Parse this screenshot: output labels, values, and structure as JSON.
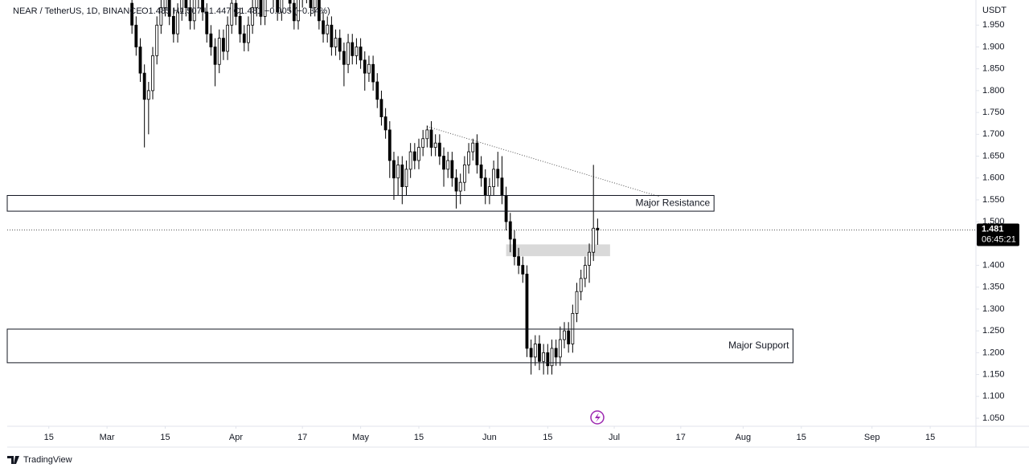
{
  "chart_data": {
    "type": "candlestick",
    "title": "NEAR / TetherUS, 1D, BINANCE",
    "ohlc_text": "O1.485 H1.507 L1.447 C1.481 −0.005 (−0.34%)",
    "y_axis_label": "USDT",
    "footer": "TradingView",
    "up_color": "#ffffff",
    "down_color": "#000000",
    "grid": false,
    "xlim": [
      "02-05",
      "09-26"
    ],
    "ylim": [
      1.0316,
      2.0075
    ],
    "xticks": [
      {
        "value": "02-15",
        "label": "15"
      },
      {
        "value": "03-01",
        "label": "Mar"
      },
      {
        "value": "03-15",
        "label": "15"
      },
      {
        "value": "04-01",
        "label": "Apr"
      },
      {
        "value": "04-17",
        "label": "17"
      },
      {
        "value": "05-01",
        "label": "May"
      },
      {
        "value": "05-15",
        "label": "15"
      },
      {
        "value": "06-01",
        "label": "Jun"
      },
      {
        "value": "06-15",
        "label": "15"
      },
      {
        "value": "07-01",
        "label": "Jul"
      },
      {
        "value": "07-17",
        "label": "17"
      },
      {
        "value": "08-01",
        "label": "Aug"
      },
      {
        "value": "08-15",
        "label": "15"
      },
      {
        "value": "09-01",
        "label": "Sep"
      },
      {
        "value": "09-15",
        "label": "15"
      }
    ],
    "yticks": [
      {
        "value": 1.05,
        "label": "1.050"
      },
      {
        "value": 1.1,
        "label": "1.100"
      },
      {
        "value": 1.15,
        "label": "1.150"
      },
      {
        "value": 1.2,
        "label": "1.200"
      },
      {
        "value": 1.25,
        "label": "1.250"
      },
      {
        "value": 1.3,
        "label": "1.300"
      },
      {
        "value": 1.35,
        "label": "1.350"
      },
      {
        "value": 1.4,
        "label": "1.400"
      },
      {
        "value": 1.45,
        "label": "1.450"
      },
      {
        "value": 1.5,
        "label": "1.500"
      },
      {
        "value": 1.55,
        "label": "1.550"
      },
      {
        "value": 1.6,
        "label": "1.600"
      },
      {
        "value": 1.65,
        "label": "1.650"
      },
      {
        "value": 1.7,
        "label": "1.700"
      },
      {
        "value": 1.75,
        "label": "1.750"
      },
      {
        "value": 1.8,
        "label": "1.800"
      },
      {
        "value": 1.85,
        "label": "1.850"
      },
      {
        "value": 1.9,
        "label": "1.900"
      },
      {
        "value": 1.95,
        "label": "1.950"
      }
    ],
    "last_price": 1.481,
    "countdown": "06:45:21",
    "zones": [
      {
        "label": "Major Resistance",
        "y": [
          1.524,
          1.56
        ],
        "x_end": "07-25"
      },
      {
        "label": "Major Support",
        "y": [
          1.177,
          1.254
        ],
        "x_end": "08-13"
      }
    ],
    "highlight": {
      "y": [
        1.421,
        1.448
      ],
      "x": [
        "06-05",
        "06-30"
      ]
    },
    "trendline": {
      "x": [
        "05-17",
        "07-12"
      ],
      "y": [
        1.718,
        1.557
      ]
    },
    "x": [
      "03-07",
      "03-08",
      "03-09",
      "03-10",
      "03-11",
      "03-12",
      "03-13",
      "03-14",
      "03-15",
      "03-16",
      "03-17",
      "03-18",
      "03-19",
      "03-20",
      "03-21",
      "03-22",
      "03-23",
      "03-24",
      "03-25",
      "03-26",
      "03-27",
      "03-28",
      "03-29",
      "03-30",
      "03-31",
      "04-01",
      "04-02",
      "04-03",
      "04-04",
      "04-05",
      "04-06",
      "04-07",
      "04-08",
      "04-09",
      "04-10",
      "04-11",
      "04-12",
      "04-13",
      "04-14",
      "04-15",
      "04-16",
      "04-17",
      "04-18",
      "04-19",
      "04-20",
      "04-21",
      "04-22",
      "04-23",
      "04-24",
      "04-25",
      "04-26",
      "04-27",
      "04-28",
      "04-29",
      "04-30",
      "05-01",
      "05-02",
      "05-03",
      "05-04",
      "05-05",
      "05-06",
      "05-07",
      "05-08",
      "05-09",
      "05-10",
      "05-11",
      "05-12",
      "05-13",
      "05-14",
      "05-15",
      "05-16",
      "05-17",
      "05-18",
      "05-19",
      "05-20",
      "05-21",
      "05-22",
      "05-23",
      "05-24",
      "05-25",
      "05-26",
      "05-27",
      "05-28",
      "05-29",
      "05-30",
      "05-31",
      "06-01",
      "06-02",
      "06-03",
      "06-04",
      "06-05",
      "06-06",
      "06-07",
      "06-08",
      "06-09",
      "06-10",
      "06-11",
      "06-12",
      "06-13",
      "06-14",
      "06-15",
      "06-16",
      "06-17",
      "06-18",
      "06-19",
      "06-20",
      "06-21",
      "06-22",
      "06-23",
      "06-24",
      "06-25",
      "06-26",
      "06-27"
    ],
    "open": [
      2.0,
      1.95,
      1.9,
      1.84,
      1.78,
      1.8,
      1.88,
      1.95,
      1.99,
      2.02,
      1.97,
      1.93,
      1.98,
      2.03,
      1.99,
      1.96,
      2.01,
      2.04,
      1.98,
      1.93,
      1.9,
      1.86,
      1.92,
      1.89,
      1.95,
      2.0,
      1.97,
      1.93,
      1.91,
      1.95,
      1.99,
      2.02,
      1.97,
      2.03,
      2.06,
      2.01,
      1.98,
      2.03,
      2.05,
      2.0,
      1.96,
      2.01,
      2.04,
      2.02,
      1.99,
      2.03,
      1.96,
      1.93,
      1.95,
      1.9,
      1.92,
      1.89,
      1.86,
      1.91,
      1.88,
      1.9,
      1.87,
      1.84,
      1.86,
      1.82,
      1.78,
      1.74,
      1.71,
      1.64,
      1.6,
      1.63,
      1.58,
      1.62,
      1.66,
      1.64,
      1.67,
      1.69,
      1.71,
      1.67,
      1.68,
      1.65,
      1.62,
      1.64,
      1.6,
      1.57,
      1.59,
      1.63,
      1.66,
      1.68,
      1.63,
      1.6,
      1.56,
      1.58,
      1.62,
      1.6,
      1.56,
      1.5,
      1.46,
      1.42,
      1.4,
      1.38,
      1.21,
      1.19,
      1.22,
      1.18,
      1.2,
      1.17,
      1.21,
      1.19,
      1.23,
      1.25,
      1.22,
      1.29,
      1.34,
      1.37,
      1.4,
      1.43,
      1.485
    ],
    "high": [
      2.02,
      1.97,
      1.92,
      1.86,
      1.82,
      1.9,
      1.97,
      2.01,
      2.04,
      2.04,
      1.99,
      2.0,
      2.05,
      2.05,
      2.01,
      2.03,
      2.06,
      2.06,
      2.0,
      1.95,
      1.92,
      1.94,
      1.94,
      1.97,
      2.02,
      2.02,
      1.99,
      1.95,
      1.97,
      2.01,
      2.04,
      2.04,
      2.05,
      2.08,
      2.08,
      2.03,
      2.05,
      2.07,
      2.07,
      2.02,
      2.03,
      2.06,
      2.06,
      2.04,
      2.05,
      2.05,
      1.98,
      1.97,
      1.97,
      1.94,
      1.94,
      1.91,
      1.93,
      1.93,
      1.92,
      1.92,
      1.89,
      1.88,
      1.88,
      1.84,
      1.8,
      1.76,
      1.73,
      1.66,
      1.65,
      1.65,
      1.64,
      1.68,
      1.68,
      1.69,
      1.71,
      1.72,
      1.73,
      1.7,
      1.7,
      1.67,
      1.66,
      1.66,
      1.62,
      1.61,
      1.65,
      1.68,
      1.69,
      1.7,
      1.65,
      1.62,
      1.6,
      1.64,
      1.66,
      1.65,
      1.58,
      1.52,
      1.48,
      1.44,
      1.42,
      1.4,
      1.23,
      1.24,
      1.24,
      1.22,
      1.22,
      1.23,
      1.23,
      1.26,
      1.27,
      1.27,
      1.31,
      1.36,
      1.39,
      1.42,
      1.45,
      1.63,
      1.507
    ],
    "low": [
      1.93,
      1.88,
      1.82,
      1.67,
      1.7,
      1.78,
      1.86,
      1.93,
      1.97,
      1.95,
      1.91,
      1.91,
      1.96,
      1.97,
      1.94,
      1.94,
      1.99,
      1.96,
      1.91,
      1.88,
      1.81,
      1.84,
      1.87,
      1.87,
      1.93,
      1.95,
      1.91,
      1.89,
      1.89,
      1.93,
      1.97,
      1.95,
      1.95,
      2.01,
      1.99,
      1.96,
      1.96,
      2.01,
      1.98,
      1.94,
      1.94,
      1.99,
      2.0,
      1.97,
      1.97,
      1.94,
      1.91,
      1.91,
      1.88,
      1.88,
      1.87,
      1.81,
      1.84,
      1.86,
      1.86,
      1.85,
      1.8,
      1.82,
      1.8,
      1.76,
      1.72,
      1.69,
      1.6,
      1.55,
      1.56,
      1.54,
      1.56,
      1.6,
      1.62,
      1.62,
      1.65,
      1.67,
      1.65,
      1.65,
      1.63,
      1.58,
      1.6,
      1.58,
      1.53,
      1.54,
      1.57,
      1.61,
      1.64,
      1.61,
      1.58,
      1.54,
      1.54,
      1.56,
      1.58,
      1.54,
      1.48,
      1.43,
      1.4,
      1.38,
      1.36,
      1.19,
      1.15,
      1.17,
      1.16,
      1.15,
      1.15,
      1.15,
      1.17,
      1.17,
      1.21,
      1.2,
      1.2,
      1.27,
      1.32,
      1.35,
      1.36,
      1.41,
      1.447
    ],
    "close": [
      1.95,
      1.9,
      1.84,
      1.78,
      1.8,
      1.88,
      1.95,
      1.99,
      2.02,
      1.97,
      1.93,
      1.98,
      2.03,
      1.99,
      1.96,
      2.01,
      2.04,
      1.98,
      1.93,
      1.9,
      1.86,
      1.92,
      1.89,
      1.95,
      2.0,
      1.97,
      1.93,
      1.91,
      1.95,
      1.99,
      2.02,
      1.97,
      2.03,
      2.06,
      2.01,
      1.98,
      2.03,
      2.05,
      2.0,
      1.96,
      2.01,
      2.04,
      2.02,
      1.99,
      2.03,
      1.96,
      1.93,
      1.95,
      1.9,
      1.92,
      1.89,
      1.86,
      1.91,
      1.88,
      1.9,
      1.87,
      1.84,
      1.86,
      1.82,
      1.78,
      1.74,
      1.71,
      1.64,
      1.6,
      1.63,
      1.58,
      1.62,
      1.66,
      1.64,
      1.67,
      1.69,
      1.71,
      1.67,
      1.68,
      1.65,
      1.62,
      1.64,
      1.6,
      1.57,
      1.59,
      1.63,
      1.66,
      1.68,
      1.63,
      1.6,
      1.56,
      1.58,
      1.62,
      1.6,
      1.56,
      1.5,
      1.46,
      1.42,
      1.4,
      1.38,
      1.21,
      1.19,
      1.22,
      1.18,
      1.2,
      1.17,
      1.21,
      1.19,
      1.23,
      1.25,
      1.22,
      1.29,
      1.34,
      1.37,
      1.4,
      1.43,
      1.485,
      1.481
    ]
  }
}
